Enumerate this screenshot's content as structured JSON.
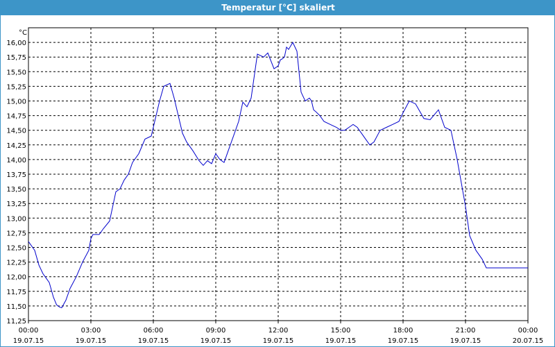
{
  "window": {
    "title": "Temperatur [°C] skaliert"
  },
  "colors": {
    "titlebar": "#3d95c8",
    "line": "#0000cc",
    "grid": "#000000"
  },
  "chart_data": {
    "type": "line",
    "title": "Temperatur [°C] skaliert",
    "yunit": "°C",
    "ylim": [
      11.25,
      16.25
    ],
    "xlim_hours": [
      0,
      24
    ],
    "grid": true,
    "y_ticks": [
      "16,00",
      "15,75",
      "15,50",
      "15,25",
      "15,00",
      "14,75",
      "14,50",
      "14,25",
      "14,00",
      "13,75",
      "13,50",
      "13,25",
      "13,00",
      "12,75",
      "12,50",
      "12,25",
      "12,00",
      "11,75",
      "11,50",
      "11,25"
    ],
    "x_ticks": [
      {
        "time": "00:00",
        "date": "19.07.15"
      },
      {
        "time": "03:00",
        "date": "19.07.15"
      },
      {
        "time": "06:00",
        "date": "19.07.15"
      },
      {
        "time": "09:00",
        "date": "19.07.15"
      },
      {
        "time": "12:00",
        "date": "19.07.15"
      },
      {
        "time": "15:00",
        "date": "19.07.15"
      },
      {
        "time": "18:00",
        "date": "19.07.15"
      },
      {
        "time": "21:00",
        "date": "19.07.15"
      },
      {
        "time": "00:00",
        "date": "20.07.15"
      }
    ],
    "series": [
      {
        "x": [
          0,
          0.3,
          0.5,
          0.7,
          0.8,
          1.0,
          1.2,
          1.35,
          1.5,
          1.6,
          1.8,
          2.0,
          2.3,
          2.6,
          2.9,
          3.0,
          3.1,
          3.4,
          3.6,
          3.9,
          4.2,
          4.4,
          4.6,
          4.8,
          5.0,
          5.3,
          5.6,
          5.9,
          6.1,
          6.3,
          6.5,
          6.8,
          7.0,
          7.2,
          7.4,
          7.6,
          7.9,
          8.2,
          8.4,
          8.6,
          8.8,
          9.0,
          9.2,
          9.4,
          9.6,
          9.9,
          10.1,
          10.3,
          10.5,
          10.7,
          11.0,
          11.3,
          11.5,
          11.8,
          12.0,
          12.1,
          12.2,
          12.3,
          12.4,
          12.5,
          12.7,
          12.9,
          13.1,
          13.3,
          13.5,
          13.6,
          13.7,
          13.8,
          14.0,
          14.2,
          14.5,
          14.8,
          15.0,
          15.2,
          15.4,
          15.6,
          15.8,
          16.0,
          16.2,
          16.4,
          16.6,
          16.9,
          17.2,
          17.5,
          17.8,
          18.0,
          18.3,
          18.6,
          19.0,
          19.3,
          19.7,
          20.0,
          20.3,
          20.6,
          21.0,
          21.2,
          21.5,
          21.8,
          22.0,
          22.2,
          22.4,
          22.6,
          22.8,
          23.0,
          23.2,
          23.5,
          23.8,
          24.0
        ],
        "y": [
          12.6,
          12.45,
          12.2,
          12.05,
          12.0,
          11.9,
          11.65,
          11.52,
          11.48,
          11.47,
          11.6,
          11.8,
          12.0,
          12.25,
          12.45,
          12.65,
          12.72,
          12.72,
          12.82,
          12.95,
          13.45,
          13.5,
          13.65,
          13.75,
          13.95,
          14.1,
          14.35,
          14.4,
          14.7,
          15.0,
          15.25,
          15.3,
          15.05,
          14.75,
          14.45,
          14.3,
          14.15,
          13.98,
          13.9,
          13.98,
          13.93,
          14.1,
          14.0,
          13.95,
          14.15,
          14.45,
          14.65,
          14.98,
          14.9,
          15.05,
          15.8,
          15.75,
          15.82,
          15.55,
          15.6,
          15.7,
          15.72,
          15.75,
          15.92,
          15.88,
          16.0,
          15.85,
          15.15,
          15.0,
          15.05,
          15.0,
          14.85,
          14.82,
          14.75,
          14.65,
          14.6,
          14.55,
          14.5,
          14.5,
          14.55,
          14.6,
          14.55,
          14.45,
          14.35,
          14.25,
          14.3,
          14.5,
          14.55,
          14.6,
          14.65,
          14.8,
          15.0,
          14.95,
          14.7,
          14.68,
          14.85,
          14.55,
          14.5,
          14.0,
          13.2,
          12.7,
          12.45,
          12.3,
          12.15,
          12.15,
          12.15,
          12.15,
          12.15,
          12.15,
          12.15,
          12.15,
          12.15,
          12.15
        ]
      }
    ]
  }
}
